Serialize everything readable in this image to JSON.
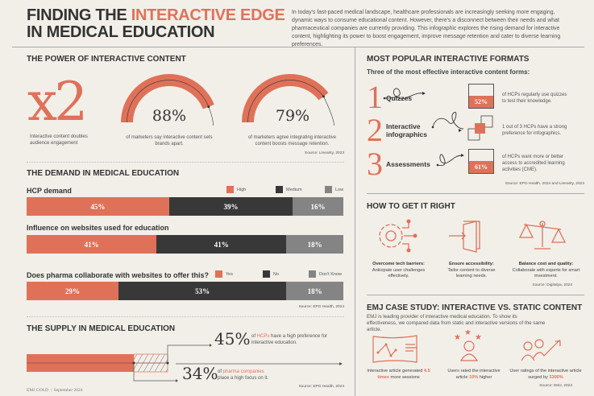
{
  "header": {
    "title_a": "FINDING THE ",
    "title_accent": "INTERACTIVE EDGE",
    "title_b": "IN MEDICAL EDUCATION",
    "intro": "In today's fast-paced medical landscape, healthcare professionals are increasingly seeking more engaging, dynamic ways to consume educational content. However, there's a disconnect between their needs and what pharmaceutical companies are currently providing. This infographic explores the rising demand for interactive content, highlighting its power to boost engagement, improve message retention and cater to diverse learning preferences."
  },
  "colors": {
    "accent": "#e07159",
    "dark": "#383838",
    "grey": "#848484",
    "bg": "#f2efe9"
  },
  "power": {
    "title": "THE POWER OF INTERACTIVE CONTENT",
    "x2": "x2",
    "x2_caption": "Interactive content doubles audience engagement",
    "gauges": [
      {
        "value": 88,
        "label": "88%",
        "caption": "of marketers say interactive content sets brands apart."
      },
      {
        "value": 79,
        "label": "79%",
        "caption": "of marketers agree integrating interactive content boosts message retention."
      }
    ],
    "source": "Source: Linearity, 2023"
  },
  "demand": {
    "title": "THE DEMAND IN MEDICAL EDUCATION",
    "legend1": [
      "High",
      "Medium",
      "Low"
    ],
    "legend2": [
      "Yes",
      "No",
      "Don't Know"
    ],
    "bars": [
      {
        "label": "HCP demand",
        "values": [
          45,
          39,
          16
        ],
        "labels": [
          "45%",
          "39%",
          "16%"
        ]
      },
      {
        "label": "Influence on websites used for education",
        "values": [
          41,
          41,
          18
        ],
        "labels": [
          "41%",
          "41%",
          "18%"
        ]
      },
      {
        "label": "Does pharma collaborate with websites to offer this?",
        "values": [
          29,
          53,
          18
        ],
        "labels": [
          "29%",
          "53%",
          "18%"
        ]
      }
    ],
    "source": "Source: EPG Health, 2024"
  },
  "supply": {
    "title": "THE SUPPLY IN MEDICAL EDUCATION",
    "hcp_value": "45%",
    "hcp_pre": "of ",
    "hcp_accent": "HCPs",
    "hcp_post": " have a high preference for interactive education.",
    "pharma_value": "34%",
    "pharma_pre": "of ",
    "pharma_accent": "pharma companies",
    "pharma_post": "place a high focus on it.",
    "source": "Source: EPG Health, 2024"
  },
  "footer": "EMJ GOLD  |  September 2024",
  "formats": {
    "title": "MOST POPULAR INTERACTIVE FORMATS",
    "subtitle": "Three of the most effective interactive content forms:",
    "items": [
      {
        "num": "1",
        "name": "Quizzes",
        "stat": "52%",
        "text": "of HCPs regularly use quizzes to test their knowledge."
      },
      {
        "num": "2",
        "name": "Interactive infographics",
        "stat": "",
        "text": "1 out of 3 HCPs have a strong preference for infographics."
      },
      {
        "num": "3",
        "name": "Assessments",
        "stat": "61%",
        "text": "of HCPs want more or better access to accredited learning activities (CME)."
      }
    ],
    "source": "Source: EPG Health, 2024 and Linearity, 2023"
  },
  "right": {
    "title": "HOW TO GET IT RIGHT",
    "items": [
      {
        "icon": "gear-icon",
        "title": "Overcome tech barriers:",
        "text": "Anticipate user challenges effectively."
      },
      {
        "icon": "door-icon",
        "title": "Ensure accessibility:",
        "text": "Tailor content to diverse learning needs."
      },
      {
        "icon": "scale-icon",
        "title": "Balance cost and quality:",
        "text": "Collaborate with experts for smart investment."
      }
    ],
    "source": "Source: Digitalya, 2024"
  },
  "case": {
    "title": "EMJ CASE STUDY: INTERACTIVE VS. STATIC CONTENT",
    "text": "EMJ is leading provider of interactive medical education. To show its effectiveness, we compared data from static and interactive versions of the same article.",
    "items": [
      {
        "pre": "Interactive article generated ",
        "accent": "4.5 times",
        "post": " more sessions"
      },
      {
        "pre": "Users rated the interactive article ",
        "accent": "10%",
        "post": " higher"
      },
      {
        "pre": "User ratings of the interactive article surged by ",
        "accent": "3300%",
        "post": ""
      }
    ],
    "source": "Source: EMJ, 2024"
  }
}
